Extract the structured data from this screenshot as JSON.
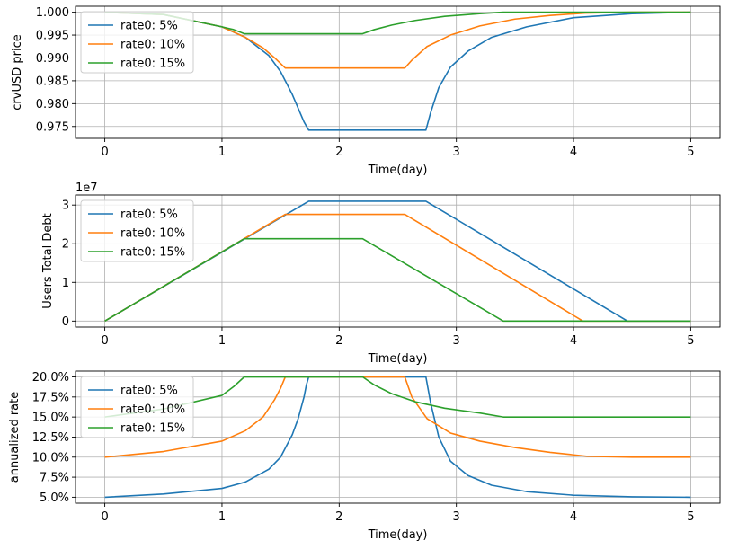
{
  "colors": {
    "series": [
      "#1f77b4",
      "#ff7f0e",
      "#2ca02c"
    ],
    "grid": "#b0b0b0",
    "axes": "#000000",
    "legend_border": "#cccccc"
  },
  "chart_data": [
    {
      "type": "line",
      "xlabel": "Time(day)",
      "ylabel": "crvUSD price",
      "xlim": [
        -0.25,
        5.25
      ],
      "ylim": [
        0.9724,
        1.0013
      ],
      "grid": true,
      "legend_position": "top-left",
      "x_ticks": [
        0,
        1,
        2,
        3,
        4,
        5
      ],
      "x_tick_labels": [
        "0",
        "1",
        "2",
        "3",
        "4",
        "5"
      ],
      "y_ticks": [
        0.975,
        0.98,
        0.985,
        0.99,
        0.995,
        1.0
      ],
      "y_tick_labels": [
        "0.975",
        "0.980",
        "0.985",
        "0.990",
        "0.995",
        "1.000"
      ],
      "series": [
        {
          "name": "rate0: 5%",
          "x": [
            0,
            0.5,
            1.0,
            1.2,
            1.4,
            1.5,
            1.6,
            1.65,
            1.7,
            1.74,
            2.0,
            2.5,
            2.74,
            2.78,
            2.85,
            2.95,
            3.1,
            3.3,
            3.6,
            4.0,
            4.5,
            5.0
          ],
          "y": [
            1.0,
            0.9995,
            0.9968,
            0.9945,
            0.9905,
            0.987,
            0.982,
            0.979,
            0.976,
            0.9742,
            0.9742,
            0.9742,
            0.9742,
            0.978,
            0.9835,
            0.988,
            0.9915,
            0.9945,
            0.9968,
            0.9988,
            0.9997,
            1.0
          ]
        },
        {
          "name": "rate0: 10%",
          "x": [
            0,
            0.5,
            1.0,
            1.2,
            1.35,
            1.45,
            1.54,
            2.0,
            2.3,
            2.56,
            2.62,
            2.75,
            2.95,
            3.2,
            3.5,
            3.8,
            4.1,
            4.5,
            5.0
          ],
          "y": [
            1.0,
            0.9995,
            0.9968,
            0.9945,
            0.9922,
            0.99,
            0.9878,
            0.9878,
            0.9878,
            0.9878,
            0.9895,
            0.9925,
            0.995,
            0.997,
            0.9985,
            0.9993,
            0.9998,
            1.0,
            1.0
          ]
        },
        {
          "name": "rate0: 15%",
          "x": [
            0,
            0.5,
            1.0,
            1.1,
            1.19,
            1.5,
            2.0,
            2.2,
            2.3,
            2.45,
            2.65,
            2.9,
            3.2,
            3.4,
            4.0,
            5.0
          ],
          "y": [
            1.0,
            0.9995,
            0.9968,
            0.9962,
            0.9953,
            0.9953,
            0.9953,
            0.9953,
            0.9962,
            0.9972,
            0.9982,
            0.9991,
            0.9997,
            1.0,
            1.0,
            1.0
          ]
        }
      ]
    },
    {
      "type": "line",
      "xlabel": "Time(day)",
      "ylabel": "Users Total Debt",
      "y_offset_label": "1e7",
      "y_scale": 10000000,
      "xlim": [
        -0.25,
        5.25
      ],
      "ylim": [
        -0.155,
        3.26
      ],
      "grid": true,
      "legend_position": "top-left",
      "x_ticks": [
        0,
        1,
        2,
        3,
        4,
        5
      ],
      "x_tick_labels": [
        "0",
        "1",
        "2",
        "3",
        "4",
        "5"
      ],
      "y_ticks": [
        0,
        1,
        2,
        3
      ],
      "y_tick_labels": [
        "0",
        "1",
        "2",
        "3"
      ],
      "series": [
        {
          "name": "rate0: 5%",
          "x": [
            0,
            1.74,
            2.74,
            4.46,
            5.0
          ],
          "y": [
            0,
            3.1,
            3.1,
            0,
            0
          ]
        },
        {
          "name": "rate0: 10%",
          "x": [
            0,
            1.54,
            2.56,
            4.08,
            5.0
          ],
          "y": [
            0,
            2.76,
            2.76,
            0,
            0
          ]
        },
        {
          "name": "rate0: 15%",
          "x": [
            0,
            1.19,
            2.2,
            3.4,
            5.0
          ],
          "y": [
            0,
            2.13,
            2.13,
            0,
            0
          ]
        }
      ]
    },
    {
      "type": "line",
      "xlabel": "Time(day)",
      "ylabel": "annualized rate",
      "xlim": [
        -0.25,
        5.25
      ],
      "ylim": [
        4.26,
        20.73
      ],
      "grid": true,
      "legend_position": "top-left",
      "x_ticks": [
        0,
        1,
        2,
        3,
        4,
        5
      ],
      "x_tick_labels": [
        "0",
        "1",
        "2",
        "3",
        "4",
        "5"
      ],
      "y_ticks": [
        5,
        7.5,
        10,
        12.5,
        15,
        17.5,
        20
      ],
      "y_tick_labels": [
        "5.0%",
        "7.5%",
        "10.0%",
        "12.5%",
        "15.0%",
        "17.5%",
        "20.0%"
      ],
      "series": [
        {
          "name": "rate0: 5%",
          "x": [
            0,
            0.5,
            1.0,
            1.2,
            1.4,
            1.5,
            1.6,
            1.65,
            1.7,
            1.72,
            1.74,
            2.0,
            2.5,
            2.74,
            2.78,
            2.85,
            2.95,
            3.1,
            3.3,
            3.6,
            4.0,
            4.5,
            5.0
          ],
          "y": [
            5.0,
            5.4,
            6.1,
            6.9,
            8.5,
            10.0,
            12.8,
            14.8,
            17.5,
            19.0,
            20.0,
            20.0,
            20.0,
            20.0,
            16.8,
            12.5,
            9.5,
            7.7,
            6.5,
            5.7,
            5.25,
            5.05,
            5.0
          ]
        },
        {
          "name": "rate0: 10%",
          "x": [
            0,
            0.5,
            1.0,
            1.2,
            1.35,
            1.45,
            1.5,
            1.54,
            2.0,
            2.56,
            2.62,
            2.75,
            2.95,
            3.2,
            3.5,
            3.8,
            4.12,
            4.5,
            5.0
          ],
          "y": [
            10.0,
            10.7,
            12.0,
            13.3,
            15.0,
            17.2,
            18.6,
            20.0,
            20.0,
            20.0,
            17.5,
            14.8,
            13.0,
            12.0,
            11.2,
            10.6,
            10.1,
            10.0,
            10.0
          ]
        },
        {
          "name": "rate0: 15%",
          "x": [
            0,
            0.5,
            1.0,
            1.1,
            1.19,
            1.5,
            2.0,
            2.2,
            2.3,
            2.45,
            2.65,
            2.9,
            3.2,
            3.4,
            4.0,
            5.0
          ],
          "y": [
            15.0,
            16.0,
            17.7,
            18.8,
            20.0,
            20.0,
            20.0,
            20.0,
            19.0,
            17.9,
            16.9,
            16.1,
            15.5,
            15.0,
            15.0,
            15.0
          ]
        }
      ]
    }
  ]
}
